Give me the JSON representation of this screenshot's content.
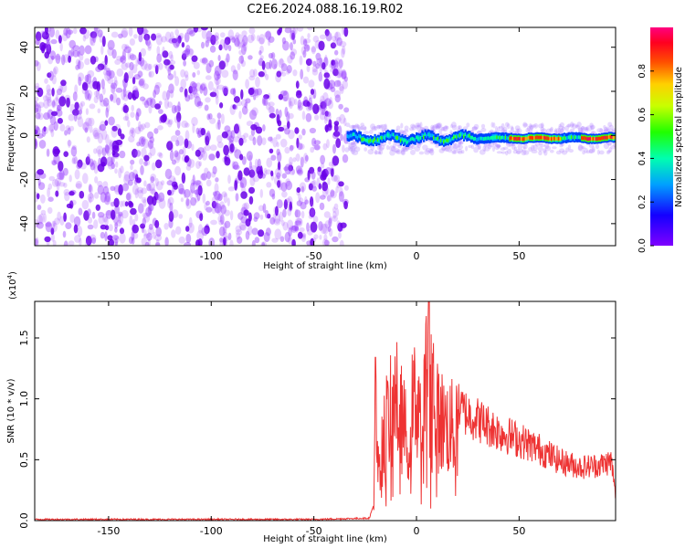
{
  "page": {
    "title": "C2E6.2024.088.16.19.R02"
  },
  "chart_data": [
    {
      "type": "heatmap",
      "title": "C2E6.2024.088.16.19.R02",
      "xlabel": "Height of straight line (km)",
      "ylabel": "Frequency (Hz)",
      "xlim": [
        -186,
        97
      ],
      "ylim": [
        -50,
        49
      ],
      "xticks": [
        -150,
        -100,
        -50,
        0,
        50
      ],
      "yticks": [
        -40,
        -20,
        0,
        20,
        40
      ],
      "colorbar": {
        "label": "Normalized spectral amplitude",
        "range": [
          0.0,
          1.0
        ],
        "ticks": [
          "0.0",
          "0.2",
          "0.4",
          "0.6",
          "0.8"
        ],
        "colormap": [
          "#7f00ff",
          "#0000ff",
          "#00c8ff",
          "#00ff80",
          "#80ff00",
          "#ffff00",
          "#ff8000",
          "#ff0000",
          "#ff0080"
        ]
      },
      "regions": [
        {
          "x_range": [
            -186,
            -34
          ],
          "freq_range": [
            -50,
            49
          ],
          "amplitude": "low (0.0–0.3), diffuse purple speckle"
        },
        {
          "x_range": [
            -34,
            97
          ],
          "freq_range": [
            -5,
            3
          ],
          "amplitude": "narrow band centered near 0 Hz, values 0.2–1.0, peaks near 0.9 around x = 50–70 and 80–95"
        }
      ]
    },
    {
      "type": "line",
      "xlabel": "Height of straight line (km)",
      "ylabel": "SNR (10 * v/v)",
      "ylabel_scale": "(x10^4)",
      "scale_base": "(x10",
      "scale_exp": "4",
      "xlim": [
        -186,
        97
      ],
      "ylim": [
        0,
        1.8
      ],
      "xticks": [
        -150,
        -100,
        -50,
        0,
        50
      ],
      "yticks": [
        "0.0",
        "0.5",
        "1.0",
        "1.5"
      ],
      "color": "#ee3333",
      "series": [
        {
          "x": [
            -186,
            -150,
            -100,
            -50,
            -23,
            -21,
            -20,
            -19,
            -15,
            -10,
            -5,
            0,
            3,
            6,
            10,
            15,
            20,
            30,
            40,
            50,
            60,
            70,
            80,
            90,
            95,
            97
          ],
          "values": [
            0.01,
            0.01,
            0.01,
            0.01,
            0.02,
            0.12,
            1.34,
            0.55,
            1.0,
            1.28,
            0.9,
            1.35,
            1.1,
            1.8,
            1.1,
            1.0,
            0.95,
            0.85,
            0.75,
            0.68,
            0.6,
            0.5,
            0.45,
            0.47,
            0.5,
            0.2
          ]
        }
      ]
    }
  ]
}
